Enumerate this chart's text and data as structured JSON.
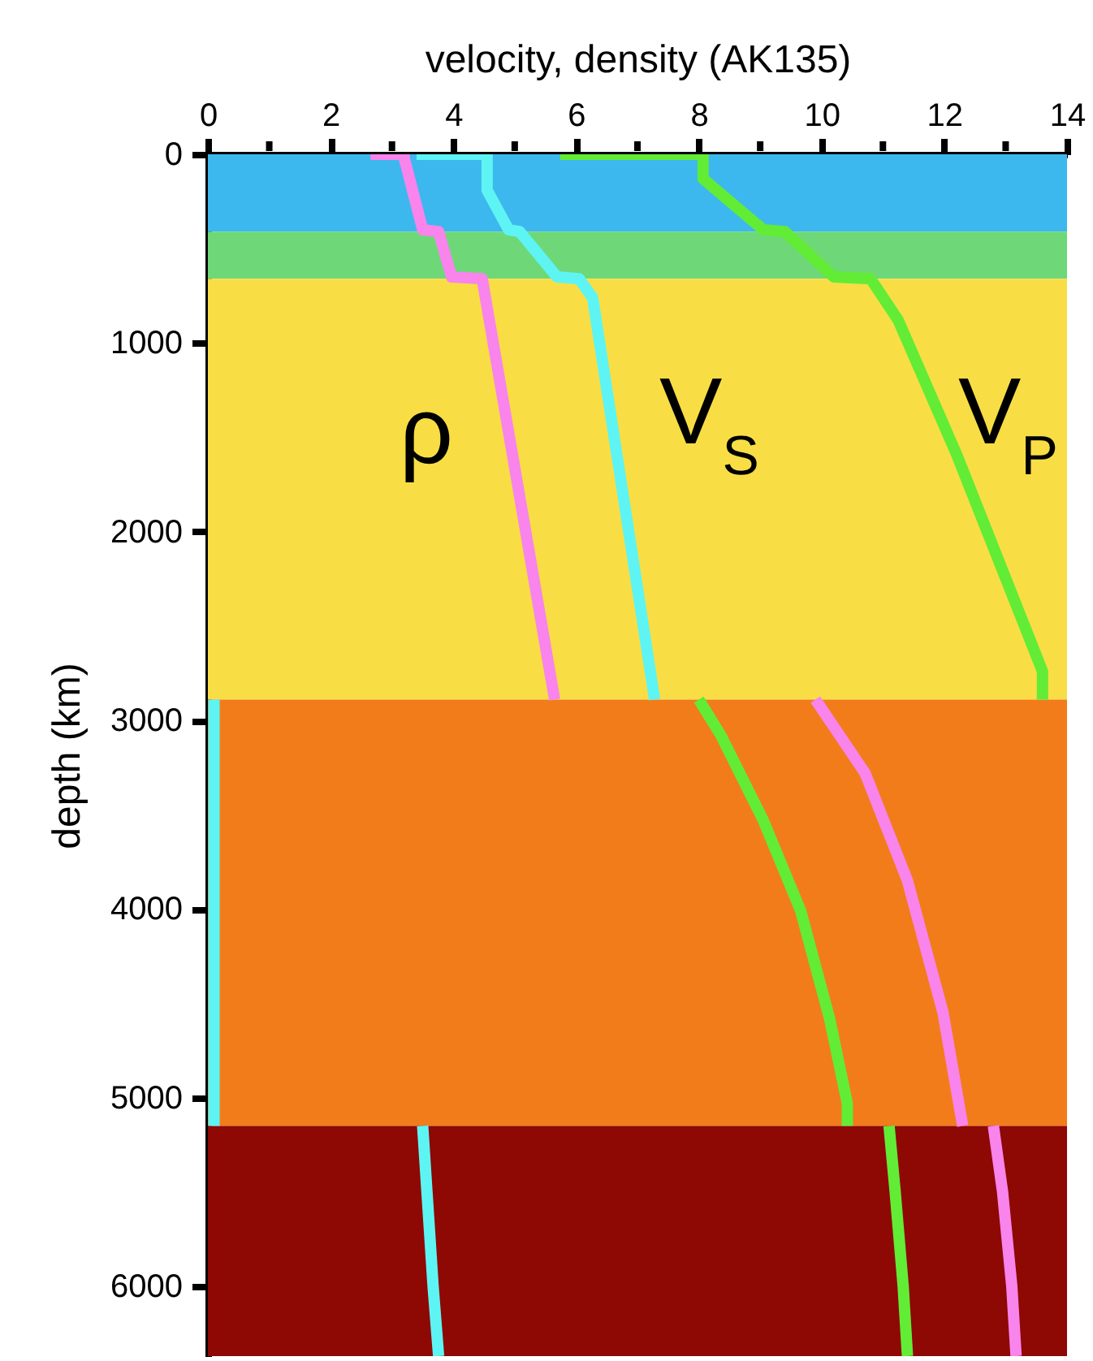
{
  "chart_data": {
    "type": "line",
    "xlabel": "velocity, density (AK135)",
    "ylabel": "depth (km)",
    "xlim": [
      0,
      14
    ],
    "xticks": [
      0,
      {
        "value": 1,
        "label": null
      },
      2,
      {
        "value": 3,
        "label": null
      },
      4,
      {
        "value": 5,
        "label": null
      },
      6,
      {
        "value": 7,
        "label": null
      },
      8,
      {
        "value": 9,
        "label": null
      },
      10,
      {
        "value": 11,
        "label": null
      },
      12,
      {
        "value": 13,
        "label": null
      },
      14
    ],
    "ylim": [
      6370,
      0
    ],
    "yticks": [
      0,
      1000,
      2000,
      3000,
      4000,
      5000,
      6000
    ],
    "bands": [
      {
        "axis": "y",
        "from": 0,
        "to": 410,
        "color": "#3cb8ee"
      },
      {
        "axis": "y",
        "from": 410,
        "to": 660,
        "color": "#6ed878"
      },
      {
        "axis": "y",
        "from": 660,
        "to": 2890,
        "color": "#f8de44"
      },
      {
        "axis": "y",
        "from": 2890,
        "to": 5150,
        "color": "#f27c1a"
      },
      {
        "axis": "y",
        "from": 5150,
        "to": 6370,
        "color": "#8e0804"
      }
    ],
    "series": [
      {
        "color": "#f884ec",
        "x": [
          2.65,
          3.2,
          3.2,
          3.5,
          3.76,
          3.97,
          4.47,
          5.65
        ],
        "values": [
          0,
          0,
          20,
          400,
          410,
          650,
          660,
          2890
        ]
      },
      {
        "color": "#5ef4f4",
        "x": [
          3.4,
          4.55,
          4.55,
          4.9,
          5.08,
          5.69,
          6.05,
          6.27,
          7.28
        ],
        "values": [
          0,
          0,
          190,
          400,
          410,
          650,
          660,
          760,
          2890
        ]
      },
      {
        "color": "#62ec36",
        "x": [
          5.74,
          6.5,
          8.07,
          8.07,
          9.05,
          9.4,
          10.2,
          10.8,
          11.25,
          12.2,
          13.6,
          13.6
        ],
        "values": [
          0,
          0,
          0,
          130,
          400,
          410,
          650,
          660,
          880,
          1590,
          2740,
          2890
        ]
      },
      {
        "color": "#5ef4f4",
        "x": [
          0.1,
          0.1
        ],
        "values": [
          2890,
          5150
        ]
      },
      {
        "color": "#62ec36",
        "x": [
          8.0,
          8.36,
          9.05,
          9.66,
          10.13,
          10.42,
          10.42
        ],
        "values": [
          2890,
          3080,
          3530,
          4010,
          4580,
          5030,
          5150
        ]
      },
      {
        "color": "#f884ec",
        "x": [
          9.9,
          10.71,
          11.4,
          11.98,
          12.3
        ],
        "values": [
          2890,
          3280,
          3850,
          4550,
          5150
        ]
      },
      {
        "color": "#5ef4f4",
        "x": [
          3.5,
          3.57,
          3.67,
          3.76
        ],
        "values": [
          5150,
          5500,
          6000,
          6370
        ]
      },
      {
        "color": "#62ec36",
        "x": [
          11.1,
          11.2,
          11.33,
          11.4
        ],
        "values": [
          5150,
          5500,
          6000,
          6370
        ]
      },
      {
        "color": "#f884ec",
        "x": [
          12.8,
          12.95,
          13.1,
          13.17
        ],
        "values": [
          5150,
          5500,
          6000,
          6370
        ]
      }
    ],
    "annotations": [
      "ρ",
      "V$_{S}$",
      "V$_{P}$"
    ]
  }
}
